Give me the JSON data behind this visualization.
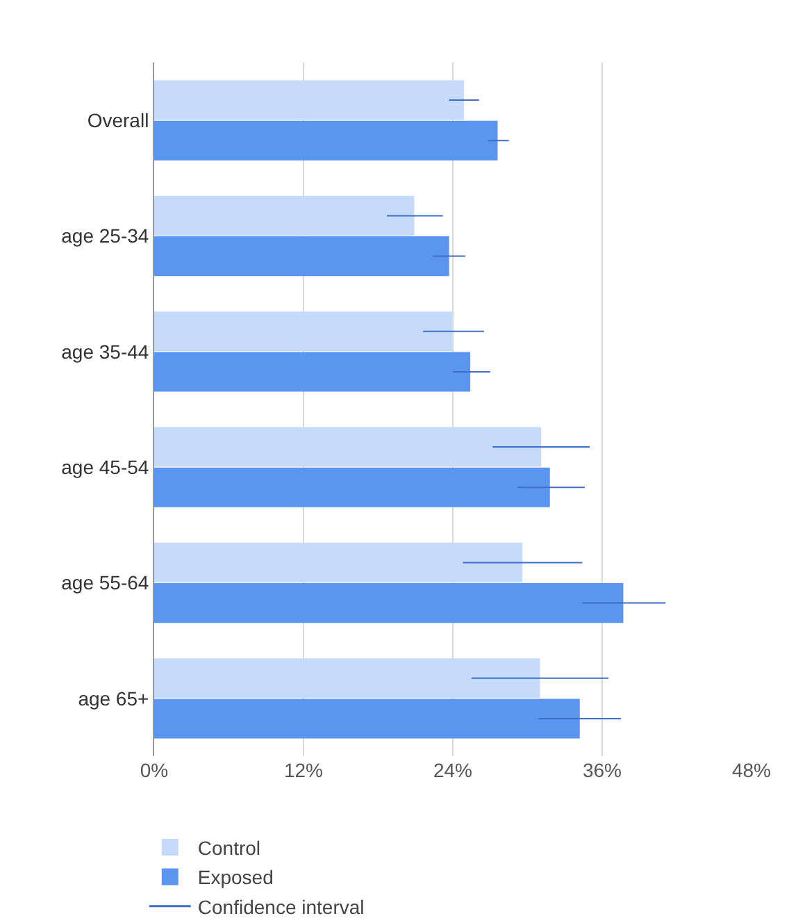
{
  "chart_data": {
    "type": "bar",
    "orientation": "horizontal",
    "categories": [
      "Overall",
      "age 25-34",
      "age 35-44",
      "age 45-54",
      "age 55-64",
      "age 65+"
    ],
    "series": [
      {
        "name": "Control",
        "color": "#c6dafc",
        "values": [
          24.9,
          20.9,
          24.0,
          31.1,
          29.6,
          31.0
        ],
        "errors": [
          [
            23.7,
            26.1
          ],
          [
            18.7,
            23.2
          ],
          [
            21.6,
            26.5
          ],
          [
            27.2,
            35.0
          ],
          [
            24.8,
            34.4
          ],
          [
            25.5,
            36.5
          ]
        ]
      },
      {
        "name": "Exposed",
        "color": "#5b95f0",
        "values": [
          27.6,
          23.7,
          25.4,
          31.8,
          37.7,
          34.2
        ],
        "errors": [
          [
            26.8,
            28.5
          ],
          [
            22.4,
            25.0
          ],
          [
            24.0,
            27.0
          ],
          [
            29.2,
            34.6
          ],
          [
            34.4,
            41.1
          ],
          [
            30.9,
            37.5
          ]
        ]
      }
    ],
    "annotations": [
      "Confidence interval"
    ],
    "xlim": [
      0,
      48
    ],
    "xticks": [
      {
        "value": 0,
        "label": "0%"
      },
      {
        "value": 12,
        "label": "12%"
      },
      {
        "value": 24,
        "label": "24%"
      },
      {
        "value": 36,
        "label": "36%"
      },
      {
        "value": 48,
        "label": "48%"
      }
    ],
    "grid": "x",
    "legend": "bottom left"
  }
}
